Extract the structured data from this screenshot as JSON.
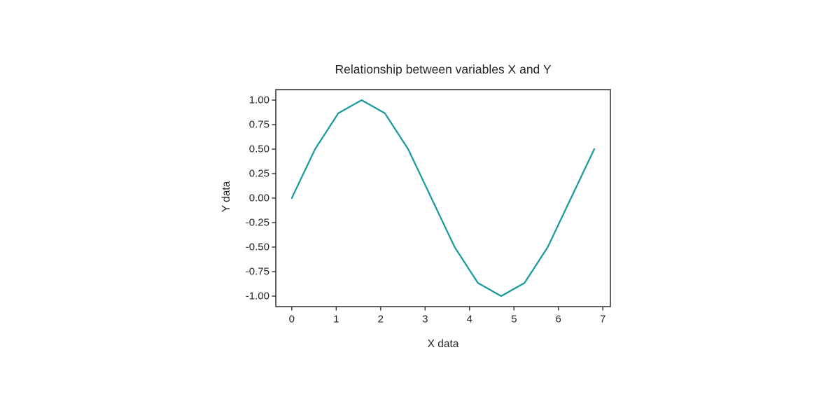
{
  "chart_data": {
    "type": "line",
    "title": "Relationship between variables X and Y",
    "xlabel": "X data",
    "ylabel": "Y data",
    "x": [
      0,
      0.524,
      1.047,
      1.571,
      2.094,
      2.618,
      3.142,
      3.665,
      4.189,
      4.712,
      5.236,
      5.76,
      6.283,
      6.807
    ],
    "y": [
      0,
      0.5,
      0.866,
      1.0,
      0.866,
      0.5,
      0.0,
      -0.5,
      -0.866,
      -1.0,
      -0.866,
      -0.5,
      0.0,
      0.5
    ],
    "xlim": [
      -0.36,
      7.17
    ],
    "ylim": [
      -1.107,
      1.107
    ],
    "xticks": {
      "values": [
        0,
        1,
        2,
        3,
        4,
        5,
        6,
        7
      ],
      "labels": [
        "0",
        "1",
        "2",
        "3",
        "4",
        "5",
        "6",
        "7"
      ]
    },
    "yticks": {
      "values": [
        1.0,
        0.75,
        0.5,
        0.25,
        0.0,
        -0.25,
        -0.5,
        -0.75,
        -1.0
      ],
      "labels": [
        "1.00",
        "0.75",
        "0.50",
        "0.25",
        "0.00",
        "-0.25",
        "-0.50",
        "-0.75",
        "-1.00"
      ]
    },
    "grid": false,
    "legend": null,
    "colors": {
      "line": "#17999c",
      "spine": "#3b3b3b",
      "tick": "#3b3b3b",
      "text": "#262626",
      "background": "#ffffff"
    }
  }
}
